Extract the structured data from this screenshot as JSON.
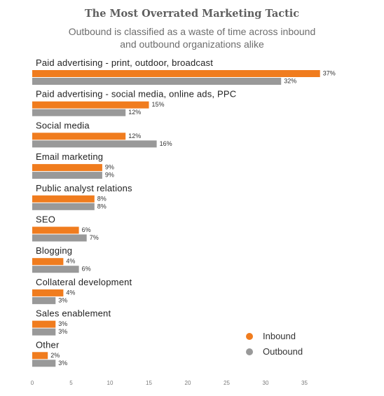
{
  "chart_data": {
    "type": "bar",
    "orientation": "horizontal",
    "title": "The Most Overrated Marketing Tactic",
    "subtitle_lines": [
      "Outbound is classified as a waste of time across inbound",
      "and outbound organizations alike"
    ],
    "categories": [
      "Paid advertising - print, outdoor, broadcast",
      "Paid advertising - social media, online ads, PPC",
      "Social media",
      "Email marketing",
      "Public analyst relations",
      "SEO",
      "Blogging",
      "Collateral development",
      "Sales enablement",
      "Other"
    ],
    "series": [
      {
        "name": "Inbound",
        "color": "#f07c1e",
        "values": [
          37,
          15,
          12,
          9,
          8,
          6,
          4,
          4,
          3,
          2
        ]
      },
      {
        "name": "Outbound",
        "color": "#999999",
        "values": [
          32,
          12,
          16,
          9,
          8,
          7,
          6,
          3,
          3,
          3
        ]
      }
    ],
    "value_suffix": "%",
    "xlim": [
      0,
      37
    ],
    "xticks": [
      0,
      5,
      10,
      15,
      20,
      25,
      30,
      35
    ],
    "grid": false,
    "legend_position": "bottom-right"
  }
}
